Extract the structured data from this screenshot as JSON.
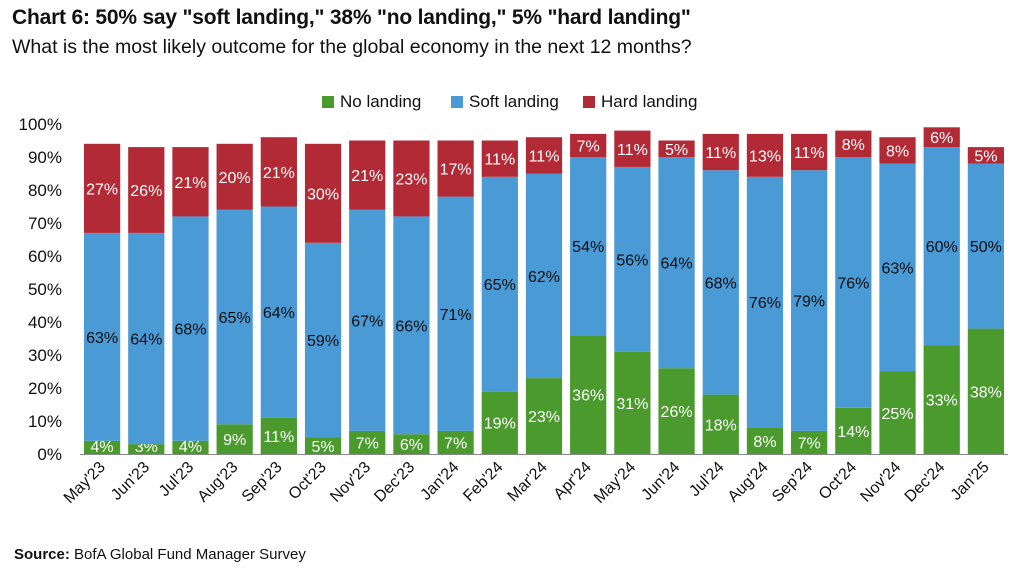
{
  "header": {
    "title": "Chart 6: 50% say \"soft landing,\" 38% \"no landing,\" 5% \"hard landing\"",
    "subtitle": "What is the most likely outcome for the global economy in the next 12 months?"
  },
  "footer": {
    "source_label": "Source:",
    "source_text": "BofA Global Fund Manager Survey"
  },
  "chart_data": {
    "type": "bar",
    "stacked": true,
    "categories": [
      "May'23",
      "Jun'23",
      "Jul'23",
      "Aug'23",
      "Sep'23",
      "Oct'23",
      "Nov'23",
      "Dec'23",
      "Jan'24",
      "Feb'24",
      "Mar'24",
      "Apr'24",
      "May'24",
      "Jun'24",
      "Jul'24",
      "Aug'24",
      "Sep'24",
      "Oct'24",
      "Nov'24",
      "Dec'24",
      "Jan'25"
    ],
    "series": [
      {
        "name": "No landing",
        "color": "#4a9a2e",
        "values": [
          4,
          3,
          4,
          9,
          11,
          5,
          7,
          6,
          7,
          19,
          23,
          36,
          31,
          26,
          18,
          8,
          7,
          14,
          25,
          33,
          38
        ]
      },
      {
        "name": "Soft landing",
        "color": "#4a9ad6",
        "values": [
          63,
          64,
          68,
          65,
          64,
          59,
          67,
          66,
          71,
          65,
          62,
          54,
          56,
          64,
          68,
          76,
          79,
          76,
          63,
          60,
          50
        ]
      },
      {
        "name": "Hard landing",
        "color": "#b22a35",
        "values": [
          27,
          26,
          21,
          20,
          21,
          30,
          21,
          23,
          17,
          11,
          11,
          7,
          11,
          5,
          11,
          13,
          11,
          8,
          8,
          6,
          5
        ]
      }
    ],
    "ylim": [
      0,
      100
    ],
    "yticks": [
      "0%",
      "10%",
      "20%",
      "30%",
      "40%",
      "50%",
      "60%",
      "70%",
      "80%",
      "90%",
      "100%"
    ],
    "data_label_suffix": "%",
    "legend_position": "top-center",
    "grid": false
  }
}
